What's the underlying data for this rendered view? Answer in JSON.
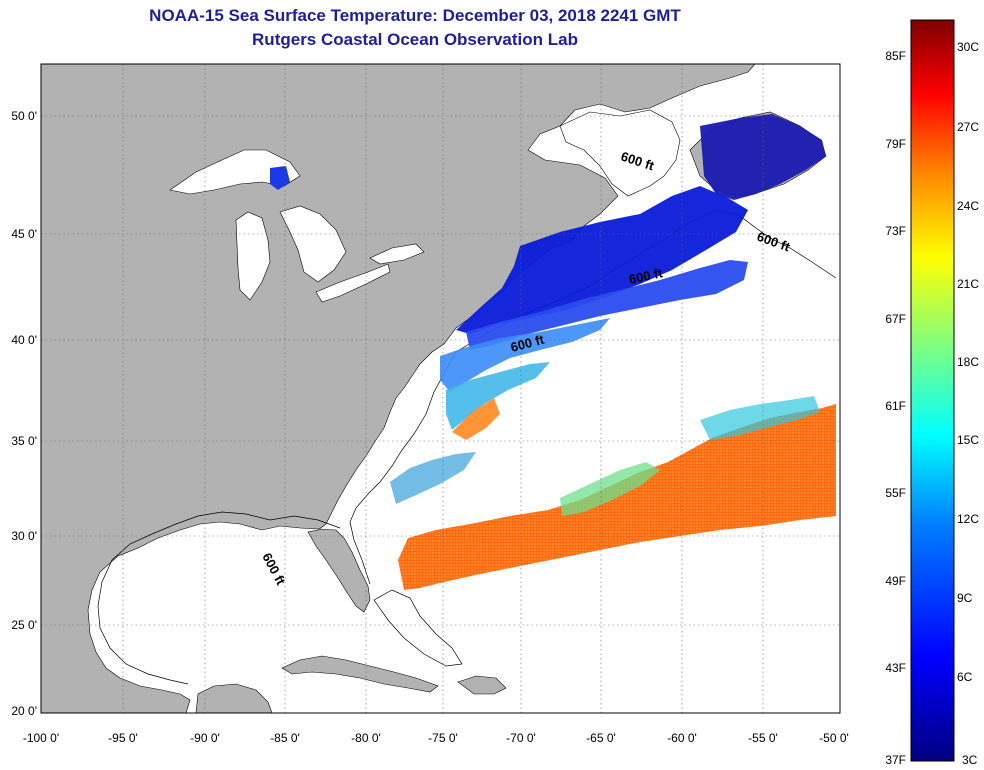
{
  "title": {
    "line1": "NOAA-15 Sea Surface Temperature:  December 03, 2018 2241 GMT",
    "line2": "Rutgers Coastal Ocean Observation Lab"
  },
  "axes": {
    "lon_ticks": [
      "-100 0'",
      "-95 0'",
      "-90 0'",
      "-85 0'",
      "-80 0'",
      "-75 0'",
      "-70 0'",
      "-65 0'",
      "-60 0'",
      "-55 0'",
      "-50 0'"
    ],
    "lat_ticks": [
      "50 0'",
      "45 0'",
      "40 0'",
      "35 0'",
      "30 0'",
      "25 0'",
      "20 0'"
    ]
  },
  "isobath_labels": [
    "600 ft",
    "600 ft",
    "600 ft",
    "600 ft",
    "600 ft"
  ],
  "colorbar": {
    "fahrenheit": [
      "85F",
      "79F",
      "73F",
      "67F",
      "61F",
      "55F",
      "49F",
      "43F",
      "37F"
    ],
    "celsius": [
      "30C",
      "27C",
      "24C",
      "21C",
      "18C",
      "15C",
      "12C",
      "9C",
      "6C",
      "3C"
    ],
    "colors": [
      "#7f0000",
      "#ff0000",
      "#ff7f00",
      "#ffff00",
      "#7fff7f",
      "#00ffff",
      "#007fff",
      "#0000ff",
      "#00007f"
    ]
  },
  "colors": {
    "land": "#b2b2b2",
    "water": "#ffffff",
    "title": "#1e1e9e"
  }
}
